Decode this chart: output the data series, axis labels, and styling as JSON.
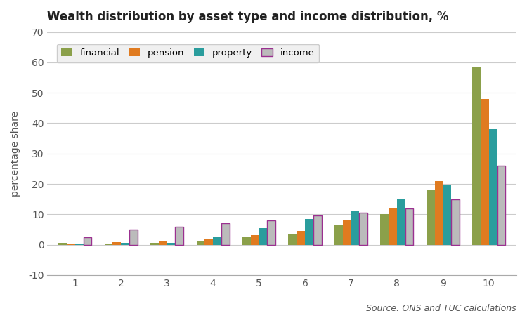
{
  "title": "Wealth distribution by asset type and income distribution, %",
  "ylabel": "percentage share",
  "xlabel": "",
  "deciles": [
    1,
    2,
    3,
    4,
    5,
    6,
    7,
    8,
    9,
    10
  ],
  "financial": [
    0.5,
    0.3,
    0.5,
    1.0,
    2.5,
    3.5,
    6.5,
    10.0,
    18.0,
    58.5
  ],
  "pension": [
    0.2,
    0.8,
    1.0,
    2.0,
    3.2,
    4.5,
    8.0,
    12.0,
    21.0,
    48.0
  ],
  "property": [
    0.2,
    0.5,
    0.7,
    2.5,
    5.5,
    8.5,
    11.0,
    15.0,
    19.5,
    38.0
  ],
  "income": [
    2.5,
    5.0,
    6.0,
    7.0,
    8.0,
    9.5,
    10.5,
    12.0,
    15.0,
    26.0
  ],
  "color_financial": "#8BA04A",
  "color_pension": "#E07B20",
  "color_property": "#2A9D9D",
  "color_income_bar": "#BBBBBB",
  "color_income_edge": "#9B3090",
  "ylim": [
    -10,
    70
  ],
  "yticks": [
    -10,
    0,
    10,
    20,
    30,
    40,
    50,
    60,
    70
  ],
  "source_text": "Source: ONS and TUC calculations",
  "legend_bg": "#F0F0F0",
  "bg_color": "#FFFFFF"
}
